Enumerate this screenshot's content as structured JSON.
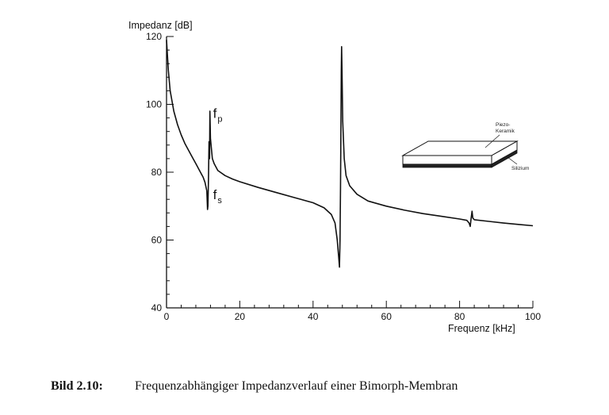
{
  "chart_data": {
    "type": "line",
    "ylabel": "Impedanz [dB]",
    "xlabel": "Frequenz [kHz]",
    "xlim": [
      0,
      100
    ],
    "ylim": [
      40,
      120
    ],
    "xticks": [
      0,
      20,
      40,
      60,
      80,
      100
    ],
    "yticks": [
      40,
      60,
      80,
      100,
      120
    ],
    "grid": false,
    "series": [
      {
        "points": [
          [
            0.0,
            119
          ],
          [
            0.5,
            110
          ],
          [
            1,
            104
          ],
          [
            2,
            98
          ],
          [
            3,
            94
          ],
          [
            4,
            91
          ],
          [
            5,
            88.5
          ],
          [
            6,
            86.5
          ],
          [
            7,
            84.5
          ],
          [
            8,
            82.5
          ],
          [
            9,
            80.5
          ],
          [
            10,
            78.5
          ],
          [
            10.5,
            77
          ],
          [
            11,
            74.5
          ],
          [
            11.2,
            69
          ],
          [
            11.3,
            70
          ],
          [
            11.45,
            78
          ],
          [
            11.6,
            89
          ],
          [
            11.75,
            84
          ],
          [
            11.85,
            98
          ],
          [
            12,
            90
          ],
          [
            12.5,
            84
          ],
          [
            13,
            82.5
          ],
          [
            14,
            80.5
          ],
          [
            16,
            79
          ],
          [
            18,
            78
          ],
          [
            20,
            77.2
          ],
          [
            25,
            75.5
          ],
          [
            30,
            74
          ],
          [
            35,
            72.5
          ],
          [
            40,
            71
          ],
          [
            43,
            69.5
          ],
          [
            45,
            67.5
          ],
          [
            46,
            65
          ],
          [
            46.6,
            60
          ],
          [
            47,
            55
          ],
          [
            47.2,
            52
          ],
          [
            47.35,
            60
          ],
          [
            47.5,
            75
          ],
          [
            47.6,
            92
          ],
          [
            47.7,
            110
          ],
          [
            47.8,
            117
          ],
          [
            47.9,
            110
          ],
          [
            48.1,
            95
          ],
          [
            48.5,
            84
          ],
          [
            49,
            79
          ],
          [
            50,
            76
          ],
          [
            52,
            73.5
          ],
          [
            55,
            71.5
          ],
          [
            60,
            70
          ],
          [
            65,
            68.8
          ],
          [
            70,
            67.8
          ],
          [
            75,
            67
          ],
          [
            80,
            66.2
          ],
          [
            82,
            65.8
          ],
          [
            82.6,
            65
          ],
          [
            82.9,
            64
          ],
          [
            83.1,
            66
          ],
          [
            83.4,
            68.5
          ],
          [
            83.6,
            66.5
          ],
          [
            84,
            66
          ],
          [
            88,
            65.5
          ],
          [
            92,
            65
          ],
          [
            96,
            64.6
          ],
          [
            100,
            64.2
          ]
        ]
      }
    ],
    "annotations": [
      {
        "main": "f",
        "sub": "p",
        "x": 12.7,
        "y": 96
      },
      {
        "main": "f",
        "sub": "s",
        "x": 12.7,
        "y": 72
      }
    ],
    "inset": {
      "label_top": [
        "Piezo-",
        "Keramik"
      ],
      "label_bottom": "Silizium"
    }
  },
  "caption": {
    "label": "Bild 2.10:",
    "text": "Frequenzabhängiger Impedanzverlauf einer Bimorph-Membran"
  }
}
